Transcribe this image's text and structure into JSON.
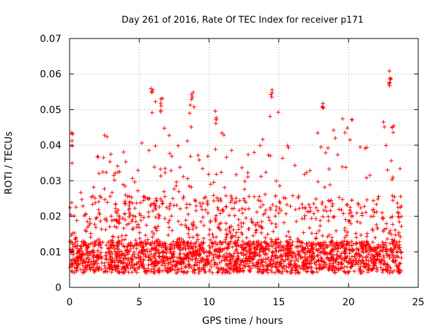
{
  "chart_data": {
    "type": "scatter",
    "title": "Day 261 of 2016, Rate Of TEC Index for receiver p171",
    "xlabel": "GPS time / hours",
    "ylabel": "ROTI / TECUs",
    "xlim": [
      0,
      25
    ],
    "ylim": [
      0,
      0.07
    ],
    "grid": true,
    "marker": "+",
    "color": "#ff0000",
    "x_ticks": [
      0,
      5,
      10,
      15,
      20,
      25
    ],
    "y_ticks": [
      0,
      0.01,
      0.02,
      0.03,
      0.04,
      0.05,
      0.06,
      0.07
    ],
    "x_tick_labels": [
      "0",
      "5",
      "10",
      "15",
      "20",
      "25"
    ],
    "y_tick_labels": [
      "0",
      "0.01",
      "0.02",
      "0.03",
      "0.04",
      "0.05",
      "0.06",
      "0.07"
    ],
    "series": [
      {
        "name": "ROTI",
        "x_range": [
          0,
          23.8
        ],
        "baseline_range": [
          0.004,
          0.013
        ],
        "envelope": [
          {
            "x": 0.0,
            "y": 0.036
          },
          {
            "x": 0.2,
            "y": 0.044
          },
          {
            "x": 0.6,
            "y": 0.026
          },
          {
            "x": 1.5,
            "y": 0.035
          },
          {
            "x": 2.2,
            "y": 0.042
          },
          {
            "x": 3.0,
            "y": 0.045
          },
          {
            "x": 4.0,
            "y": 0.04
          },
          {
            "x": 4.8,
            "y": 0.036
          },
          {
            "x": 5.8,
            "y": 0.056
          },
          {
            "x": 6.5,
            "y": 0.054
          },
          {
            "x": 7.5,
            "y": 0.038
          },
          {
            "x": 8.8,
            "y": 0.055
          },
          {
            "x": 9.5,
            "y": 0.036
          },
          {
            "x": 10.5,
            "y": 0.05
          },
          {
            "x": 11.2,
            "y": 0.047
          },
          {
            "x": 12.5,
            "y": 0.036
          },
          {
            "x": 14.0,
            "y": 0.044
          },
          {
            "x": 14.5,
            "y": 0.056
          },
          {
            "x": 15.5,
            "y": 0.045
          },
          {
            "x": 16.5,
            "y": 0.032
          },
          {
            "x": 18.2,
            "y": 0.053
          },
          {
            "x": 19.0,
            "y": 0.047
          },
          {
            "x": 20.0,
            "y": 0.048
          },
          {
            "x": 21.0,
            "y": 0.047
          },
          {
            "x": 22.0,
            "y": 0.04
          },
          {
            "x": 23.0,
            "y": 0.061
          },
          {
            "x": 23.5,
            "y": 0.036
          },
          {
            "x": 23.8,
            "y": 0.039
          }
        ],
        "highlights": [
          {
            "x": 0.15,
            "y": 0.044
          },
          {
            "x": 5.9,
            "y": 0.056
          },
          {
            "x": 6.6,
            "y": 0.054
          },
          {
            "x": 8.8,
            "y": 0.055
          },
          {
            "x": 10.5,
            "y": 0.05
          },
          {
            "x": 14.5,
            "y": 0.056
          },
          {
            "x": 18.2,
            "y": 0.053
          },
          {
            "x": 23.0,
            "y": 0.061
          },
          {
            "x": 22.9,
            "y": 0.058
          },
          {
            "x": 23.2,
            "y": 0.046
          }
        ]
      }
    ]
  }
}
